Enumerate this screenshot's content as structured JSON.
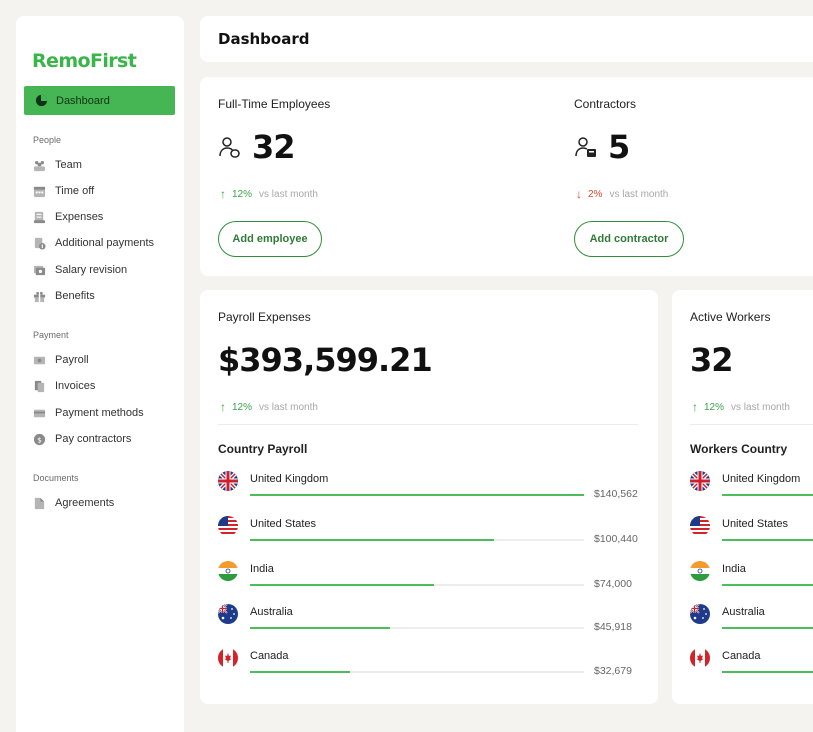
{
  "app": {
    "logo": "RemoFirst"
  },
  "sidebar": {
    "active": {
      "label": "Dashboard",
      "icon": "pie-chart-icon"
    },
    "sections": [
      {
        "label": "People",
        "items": [
          {
            "label": "Team",
            "icon": "team-icon"
          },
          {
            "label": "Time off",
            "icon": "calendar-icon"
          },
          {
            "label": "Expenses",
            "icon": "receipt-icon"
          },
          {
            "label": "Additional payments",
            "icon": "payments-icon"
          },
          {
            "label": "Salary revision",
            "icon": "salary-icon"
          },
          {
            "label": "Benefits",
            "icon": "gift-icon"
          }
        ]
      },
      {
        "label": "Payment",
        "items": [
          {
            "label": "Payroll",
            "icon": "cash-icon"
          },
          {
            "label": "Invoices",
            "icon": "invoice-icon"
          },
          {
            "label": "Payment methods",
            "icon": "card-icon"
          },
          {
            "label": "Pay contractors",
            "icon": "dollar-icon"
          }
        ]
      },
      {
        "label": "Documents",
        "items": [
          {
            "label": "Agreements",
            "icon": "document-icon"
          }
        ]
      }
    ]
  },
  "header": {
    "title": "Dashboard"
  },
  "kpis": {
    "employees": {
      "label": "Full-Time Employees",
      "value": "32",
      "change": "12%",
      "direction": "up",
      "comparison": "vs last month",
      "button": "Add employee",
      "icon": "employee-icon"
    },
    "contractors": {
      "label": "Contractors",
      "value": "5",
      "change": "2%",
      "direction": "down",
      "comparison": "vs last month",
      "button": "Add contractor",
      "icon": "contractor-icon"
    }
  },
  "payroll": {
    "label": "Payroll Expenses",
    "value": "$393,599.21",
    "change": "12%",
    "direction": "up",
    "comparison": "vs last month",
    "section_title": "Country Payroll",
    "countries": [
      {
        "name": "United Kingdom",
        "amount": "$140,562",
        "share": 1.0,
        "flag": "uk-flag-icon"
      },
      {
        "name": "United States",
        "amount": "$100,440",
        "share": 0.73,
        "flag": "us-flag-icon"
      },
      {
        "name": "India",
        "amount": "$74,000",
        "share": 0.55,
        "flag": "india-flag-icon"
      },
      {
        "name": "Australia",
        "amount": "$45,918",
        "share": 0.42,
        "flag": "australia-flag-icon"
      },
      {
        "name": "Canada",
        "amount": "$32,679",
        "share": 0.3,
        "flag": "canada-flag-icon"
      }
    ]
  },
  "workers": {
    "label": "Active Workers",
    "value": "32",
    "change": "12%",
    "direction": "up",
    "comparison": "vs last month",
    "section_title": "Workers Country",
    "countries": [
      {
        "name": "United Kingdom",
        "flag": "uk-flag-icon"
      },
      {
        "name": "United States",
        "flag": "us-flag-icon"
      },
      {
        "name": "India",
        "flag": "india-flag-icon"
      },
      {
        "name": "Australia",
        "flag": "australia-flag-icon"
      },
      {
        "name": "Canada",
        "flag": "canada-flag-icon"
      }
    ]
  },
  "colors": {
    "brand": "#39b54a",
    "up": "#3aa24a",
    "down": "#d9492f",
    "bar": "#4dbd5c"
  }
}
